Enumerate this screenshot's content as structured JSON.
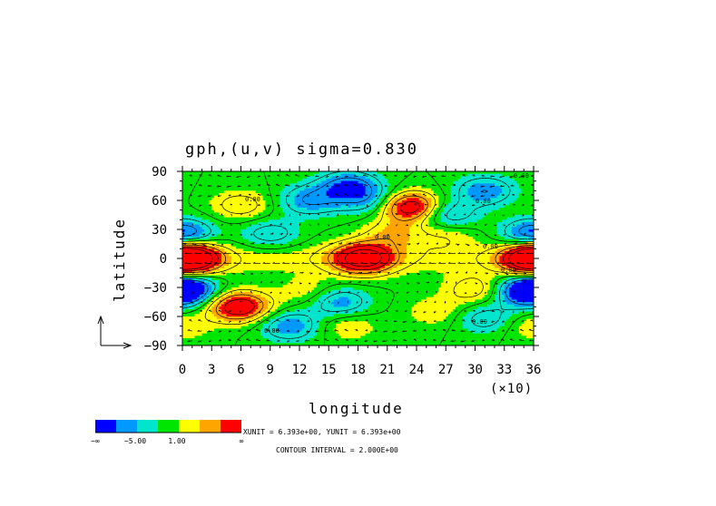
{
  "chart_data": {
    "type": "heatmap",
    "title": "gph,(u,v) sigma=0.830",
    "xlabel": "longitude",
    "ylabel": "latitude",
    "x_scale_note": "(×10)",
    "x_ticks": [
      "0",
      "3",
      "6",
      "9",
      "12",
      "15",
      "18",
      "21",
      "24",
      "27",
      "30",
      "33",
      "36"
    ],
    "y_ticks": [
      "90",
      "60",
      "30",
      "0",
      "−30",
      "−60",
      "−90"
    ],
    "xlim": [
      0,
      36
    ],
    "ylim": [
      -90,
      90
    ],
    "colorbar": {
      "colors": [
        "#0000ff",
        "#0099ff",
        "#00e5cc",
        "#00e600",
        "#ffff00",
        "#ffa500",
        "#ff0000"
      ],
      "labels": [
        "−∞",
        "−5.00",
        "1.00",
        "∞"
      ]
    },
    "unit_text": "XUNIT = 6.393e+00, YUNIT = 6.393e+00",
    "contour_text": "CONTOUR INTERVAL = 2.000E+00",
    "contour_labels": [
      "0.00",
      "0.00",
      "0.00",
      "0.00",
      "0.00",
      "0.00",
      "0.00",
      "0.00"
    ],
    "features": [
      {
        "lon": 0.5,
        "lat": 0,
        "value": 8
      },
      {
        "lon": 18.5,
        "lat": 0,
        "value": 9
      },
      {
        "lon": 36,
        "lat": 0,
        "value": 7
      },
      {
        "lon": 23.5,
        "lat": 53,
        "value": 8
      },
      {
        "lon": 5.8,
        "lat": -50,
        "value": 8
      },
      {
        "lon": 21.5,
        "lat": 25,
        "value": 3
      },
      {
        "lon": 6,
        "lat": 55,
        "value": 3
      },
      {
        "lon": 30,
        "lat": -32,
        "value": 3
      },
      {
        "lon": 13,
        "lat": -35,
        "value": 2
      },
      {
        "lon": 17,
        "lat": -70,
        "value": 2
      },
      {
        "lon": 26,
        "lat": -55,
        "value": 2
      },
      {
        "lon": 0,
        "lat": -70,
        "value": 2
      },
      {
        "lon": 27,
        "lat": 25,
        "value": 2
      },
      {
        "lon": 13,
        "lat": 60,
        "value": -4
      },
      {
        "lon": 27,
        "lat": 45,
        "value": -4
      },
      {
        "lon": 36,
        "lat": 25,
        "value": -6
      },
      {
        "lon": 17,
        "lat": 75,
        "value": -5
      },
      {
        "lon": 0.3,
        "lat": -30,
        "value": -5
      },
      {
        "lon": 35.5,
        "lat": -35,
        "value": -6
      },
      {
        "lon": 16,
        "lat": -45,
        "value": -4
      },
      {
        "lon": 11,
        "lat": -70,
        "value": -4
      },
      {
        "lon": 19,
        "lat": 60,
        "value": -3
      },
      {
        "lon": 31,
        "lat": 70,
        "value": -4
      },
      {
        "lon": 9,
        "lat": 25,
        "value": -3
      },
      {
        "lon": 31,
        "lat": -62,
        "value": -3
      }
    ]
  }
}
